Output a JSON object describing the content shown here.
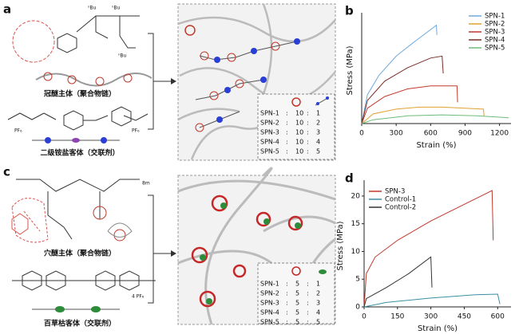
{
  "panels": {
    "a": {
      "letter": "a",
      "host_label": "冠醚主体（聚合物链）",
      "guest_label": "二级铵盐客体（交联剂）",
      "chem_labels": [
        "ⁿBu",
        "ⁿBu",
        "ⁿBu",
        "PF₆",
        "PF₆"
      ],
      "table": {
        "rows": [
          [
            "SPN-1",
            ":",
            "10",
            ":",
            "1"
          ],
          [
            "SPN-2",
            ":",
            "10",
            ":",
            "2"
          ],
          [
            "SPN-3",
            ":",
            "10",
            ":",
            "3"
          ],
          [
            "SPN-4",
            ":",
            "10",
            ":",
            "4"
          ],
          [
            "SPN-5",
            ":",
            "10",
            ":",
            "5"
          ]
        ]
      }
    },
    "c": {
      "letter": "c",
      "host_label": "穴醚主体（聚合物链）",
      "guest_label": "百草枯客体（交联剂）",
      "chem_labels": [
        "8m",
        "4 PF₆"
      ],
      "table": {
        "rows": [
          [
            "SPN-1",
            ":",
            "5",
            ":",
            "1"
          ],
          [
            "SPN-2",
            ":",
            "5",
            ":",
            "2"
          ],
          [
            "SPN-3",
            ":",
            "5",
            ":",
            "3"
          ],
          [
            "SPN-4",
            ":",
            "5",
            ":",
            "4"
          ],
          [
            "SPN-5",
            ":",
            "5",
            ":",
            "5"
          ]
        ]
      }
    }
  },
  "chart_data": [
    {
      "type": "line",
      "letter": "b",
      "xlabel": "Strain (%)",
      "ylabel": "Stress (MPa)",
      "xlim": [
        0,
        1300
      ],
      "xticks": [
        0,
        300,
        600,
        900,
        1200
      ],
      "ylim": [
        0,
        5.5
      ],
      "legend": "upper right",
      "series": [
        {
          "name": "SPN-1",
          "color": "#6fa8dc",
          "x": [
            0,
            50,
            150,
            300,
            450,
            650,
            655
          ],
          "values": [
            0,
            1.5,
            2.5,
            3.5,
            4.2,
            5.1,
            4.6
          ]
        },
        {
          "name": "SPN-2",
          "color": "#e0a030",
          "x": [
            0,
            100,
            300,
            500,
            700,
            900,
            1060,
            1065
          ],
          "values": [
            0,
            0.5,
            0.75,
            0.85,
            0.85,
            0.8,
            0.75,
            0.4
          ]
        },
        {
          "name": "SPN-3",
          "color": "#c0392b",
          "x": [
            0,
            50,
            200,
            400,
            600,
            800,
            830,
            835
          ],
          "values": [
            0,
            0.8,
            1.4,
            1.8,
            1.95,
            1.95,
            1.95,
            1.1
          ]
        },
        {
          "name": "SPN-4",
          "color": "#7b2d26",
          "x": [
            0,
            50,
            200,
            400,
            600,
            700,
            710
          ],
          "values": [
            0,
            1.2,
            2.2,
            2.9,
            3.4,
            3.5,
            2.6
          ]
        },
        {
          "name": "SPN-5",
          "color": "#6dbb7a",
          "x": [
            0,
            100,
            400,
            700,
            1000,
            1280
          ],
          "values": [
            0,
            0.2,
            0.4,
            0.45,
            0.4,
            0.3
          ]
        }
      ]
    },
    {
      "type": "line",
      "letter": "d",
      "xlabel": "Strain (%)",
      "ylabel": "Stress (MPa)",
      "xlim": [
        0,
        660
      ],
      "xticks": [
        0,
        150,
        300,
        450,
        600
      ],
      "ylim": [
        0,
        22
      ],
      "yticks": [
        0,
        5,
        10,
        15,
        20
      ],
      "legend": "upper left",
      "series": [
        {
          "name": "SPN-3",
          "color": "#c0392b",
          "x": [
            0,
            10,
            50,
            150,
            300,
            450,
            575,
            580
          ],
          "values": [
            0,
            6,
            9,
            12,
            15.5,
            18.5,
            21,
            12
          ]
        },
        {
          "name": "Control-1",
          "color": "#3a8fa3",
          "x": [
            0,
            100,
            300,
            500,
            600,
            610
          ],
          "values": [
            0,
            0.8,
            1.6,
            2.2,
            2.3,
            0.5
          ]
        },
        {
          "name": "Control-2",
          "color": "#333333",
          "x": [
            0,
            10,
            100,
            200,
            300,
            305
          ],
          "values": [
            0,
            1.5,
            3.5,
            6,
            9,
            3.5
          ]
        }
      ]
    }
  ]
}
